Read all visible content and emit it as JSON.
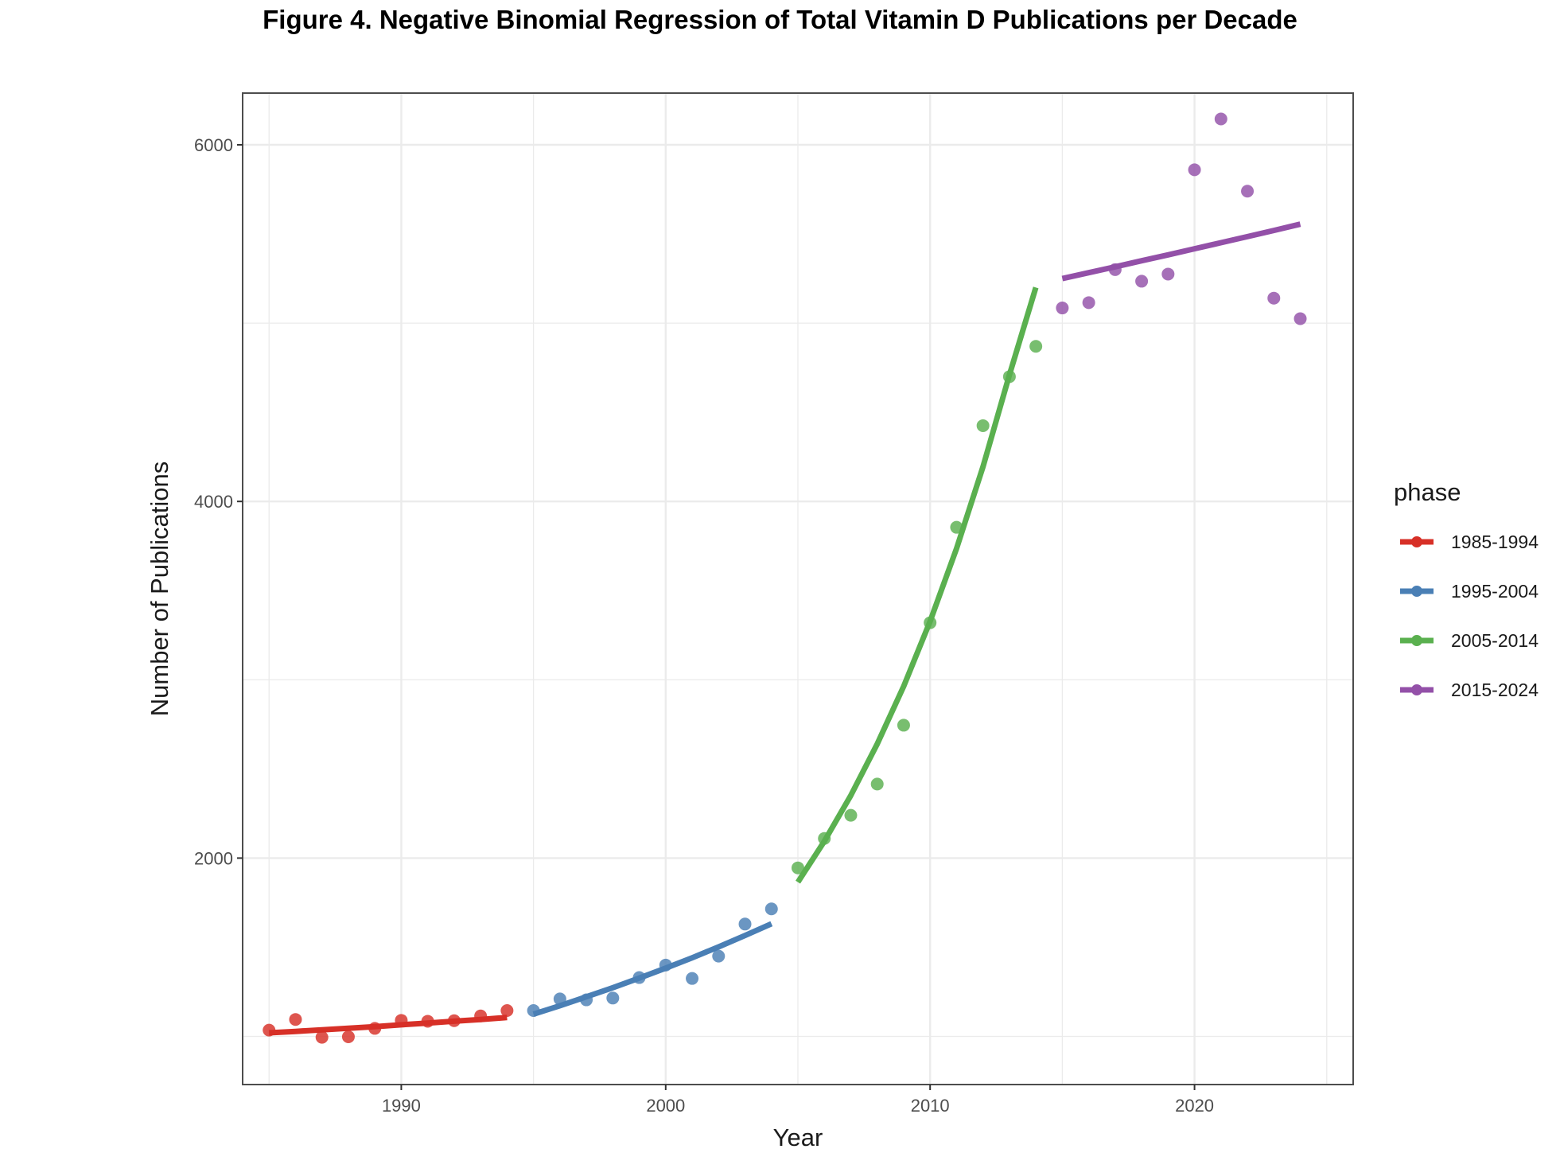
{
  "chart_data": {
    "type": "scatter",
    "title": "Figure 4. Negative Binomial Regression of Total Vitamin D Publications per Decade",
    "xlabel": "Year",
    "ylabel": "Number of Publications",
    "xlim": [
      1984,
      2026
    ],
    "ylim": [
      730,
      6290
    ],
    "x_ticks": [
      1990,
      2000,
      2010,
      2020
    ],
    "y_ticks": [
      2000,
      4000,
      6000
    ],
    "grid": true,
    "legend": {
      "title": "phase",
      "placement": "right"
    },
    "series": [
      {
        "name": "1985-1994",
        "color": "#d73027",
        "points": [
          [
            1985,
            1035
          ],
          [
            1986,
            1095
          ],
          [
            1987,
            995
          ],
          [
            1988,
            998
          ],
          [
            1989,
            1045
          ],
          [
            1990,
            1090
          ],
          [
            1991,
            1085
          ],
          [
            1992,
            1088
          ],
          [
            1993,
            1115
          ],
          [
            1994,
            1145
          ]
        ],
        "fit": [
          [
            1985,
            1020
          ],
          [
            1986,
            1028
          ],
          [
            1987,
            1037
          ],
          [
            1988,
            1046
          ],
          [
            1989,
            1055
          ],
          [
            1990,
            1065
          ],
          [
            1991,
            1075
          ],
          [
            1992,
            1085
          ],
          [
            1993,
            1095
          ],
          [
            1994,
            1106
          ]
        ]
      },
      {
        "name": "1995-2004",
        "color": "#4a7fb5",
        "points": [
          [
            1995,
            1145
          ],
          [
            1996,
            1210
          ],
          [
            1997,
            1205
          ],
          [
            1998,
            1215
          ],
          [
            1999,
            1330
          ],
          [
            2000,
            1400
          ],
          [
            2001,
            1325
          ],
          [
            2002,
            1450
          ],
          [
            2003,
            1630
          ],
          [
            2004,
            1715
          ]
        ],
        "fit": [
          [
            1995,
            1125
          ],
          [
            1996,
            1172
          ],
          [
            1997,
            1222
          ],
          [
            1998,
            1273
          ],
          [
            1999,
            1327
          ],
          [
            2000,
            1383
          ],
          [
            2001,
            1441
          ],
          [
            2002,
            1502
          ],
          [
            2003,
            1566
          ],
          [
            2004,
            1632
          ]
        ]
      },
      {
        "name": "2005-2014",
        "color": "#5ab04f",
        "points": [
          [
            2005,
            1945
          ],
          [
            2006,
            2110
          ],
          [
            2007,
            2240
          ],
          [
            2008,
            2415
          ],
          [
            2009,
            2745
          ],
          [
            2010,
            3320
          ],
          [
            2011,
            3855
          ],
          [
            2012,
            4425
          ],
          [
            2013,
            4700
          ],
          [
            2014,
            4870
          ]
        ],
        "fit": [
          [
            2005,
            1865
          ],
          [
            2006,
            2094
          ],
          [
            2007,
            2351
          ],
          [
            2008,
            2640
          ],
          [
            2009,
            2964
          ],
          [
            2010,
            3328
          ],
          [
            2011,
            3736
          ],
          [
            2012,
            4195
          ],
          [
            2013,
            4710
          ],
          [
            2014,
            5200
          ]
        ]
      },
      {
        "name": "2015-2024",
        "color": "#9350a8",
        "points": [
          [
            2015,
            5085
          ],
          [
            2016,
            5115
          ],
          [
            2017,
            5300
          ],
          [
            2018,
            5235
          ],
          [
            2019,
            5275
          ],
          [
            2020,
            5860
          ],
          [
            2021,
            6145
          ],
          [
            2022,
            5740
          ],
          [
            2023,
            5140
          ],
          [
            2024,
            5025
          ]
        ],
        "fit": [
          [
            2015,
            5250
          ],
          [
            2016,
            5283
          ],
          [
            2017,
            5316
          ],
          [
            2018,
            5350
          ],
          [
            2019,
            5383
          ],
          [
            2020,
            5417
          ],
          [
            2021,
            5451
          ],
          [
            2022,
            5485
          ],
          [
            2023,
            5520
          ],
          [
            2024,
            5555
          ]
        ]
      }
    ]
  }
}
